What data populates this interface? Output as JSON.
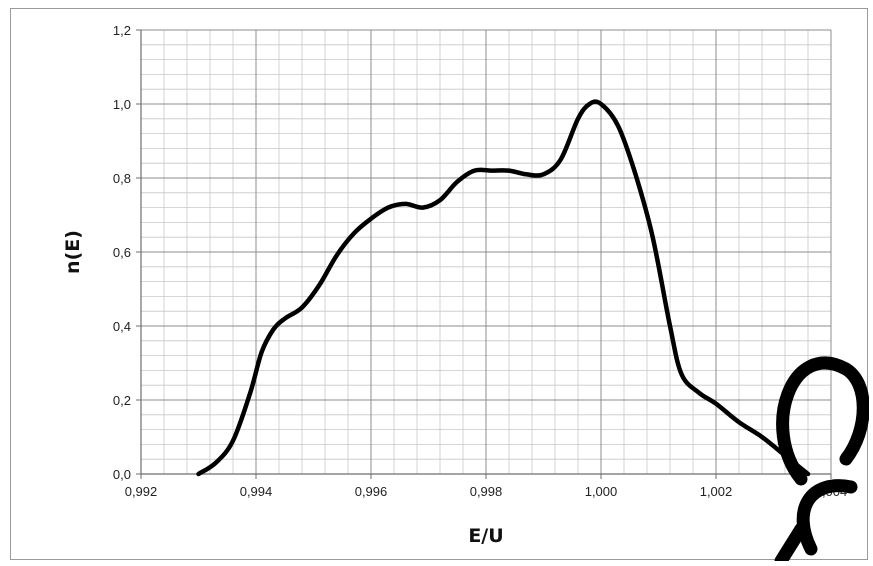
{
  "chart_data": {
    "type": "line",
    "title": "",
    "xlabel": "E/U",
    "ylabel": "n(E)",
    "xlim": [
      0.992,
      1.004
    ],
    "ylim": [
      0.0,
      1.2
    ],
    "x_ticks": [
      "0,992",
      "0,994",
      "0,996",
      "0,998",
      "1,000",
      "1,002",
      "1,004"
    ],
    "y_ticks": [
      "0,0",
      "0,2",
      "0,4",
      "0,6",
      "0,8",
      "1,0",
      "1,2"
    ],
    "grid": true,
    "minor_grid": {
      "x_divisions": 5,
      "y_divisions": 5
    },
    "line_color": "#000000",
    "series": [
      {
        "x": [
          0.993,
          0.9933,
          0.9936,
          0.9939,
          0.9941,
          0.9943,
          0.9945,
          0.9948,
          0.9951,
          0.9954,
          0.9957,
          0.996,
          0.9963,
          0.9966,
          0.9969,
          0.9972,
          0.9975,
          0.9978,
          0.9981,
          0.9984,
          0.9987,
          0.999,
          0.9993,
          0.9996,
          0.9998,
          1.0,
          1.0003,
          1.0006,
          1.0009,
          1.0012,
          1.0014,
          1.0017,
          1.002,
          1.0024,
          1.0028,
          1.0032,
          1.0036
        ],
        "y": [
          0.0,
          0.03,
          0.09,
          0.22,
          0.33,
          0.39,
          0.42,
          0.45,
          0.51,
          0.59,
          0.65,
          0.69,
          0.72,
          0.73,
          0.72,
          0.74,
          0.79,
          0.82,
          0.82,
          0.82,
          0.81,
          0.81,
          0.85,
          0.96,
          1.0,
          1.0,
          0.94,
          0.81,
          0.64,
          0.4,
          0.27,
          0.22,
          0.19,
          0.14,
          0.1,
          0.05,
          0.0
        ]
      }
    ]
  },
  "watermark": {
    "color": "#000000"
  }
}
